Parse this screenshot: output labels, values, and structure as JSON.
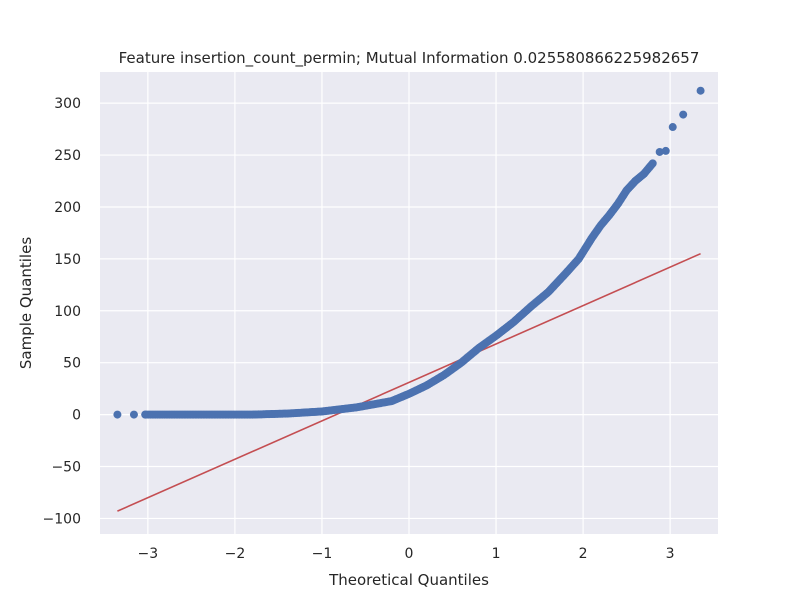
{
  "chart_data": {
    "type": "scatter",
    "title": "Feature insertion_count_permin; Mutual Information 0.025580866225982657",
    "xlabel": "Theoretical Quantiles",
    "ylabel": "Sample Quantiles",
    "xlim": [
      -3.55,
      3.55
    ],
    "ylim": [
      -115,
      330
    ],
    "xticks": [
      -3,
      -2,
      -1,
      0,
      1,
      2,
      3
    ],
    "xtick_labels": [
      "−3",
      "−2",
      "−1",
      "0",
      "1",
      "2",
      "3"
    ],
    "yticks": [
      -100,
      -50,
      0,
      50,
      100,
      150,
      200,
      250,
      300
    ],
    "ytick_labels": [
      "−100",
      "−50",
      "0",
      "50",
      "100",
      "150",
      "200",
      "250",
      "300"
    ],
    "grid": true,
    "colors": {
      "background": "#eaeaf2",
      "grid": "#ffffff",
      "points": "#4c72b0",
      "line": "#c44e52"
    },
    "series": [
      {
        "kind": "points",
        "x": [
          -3.35,
          -3.16,
          -3.03,
          -2.93,
          -2.85,
          -2.75,
          -2.6,
          -2.4,
          -2.2,
          -2.0,
          -1.8,
          -1.6,
          -1.4,
          -1.2,
          -1.0,
          -0.8,
          -0.6,
          -0.4,
          -0.2,
          0.0,
          0.2,
          0.4,
          0.6,
          0.8,
          1.0,
          1.2,
          1.4,
          1.6,
          1.8,
          1.95,
          2.1,
          2.2,
          2.3,
          2.4,
          2.5,
          2.6,
          2.7,
          2.8,
          2.88,
          2.95,
          3.03,
          3.15,
          3.35
        ],
        "y": [
          0,
          0,
          0,
          0,
          0,
          0,
          0,
          0,
          0,
          0,
          0,
          0.5,
          1,
          2,
          3,
          5,
          7,
          10,
          13,
          20,
          28,
          38,
          50,
          64,
          76,
          89,
          104,
          118,
          136,
          150,
          170,
          182,
          192,
          203,
          216,
          225,
          232,
          242,
          253,
          254,
          277,
          289,
          312
        ]
      },
      {
        "kind": "line",
        "x": [
          -3.35,
          3.35
        ],
        "y": [
          -93,
          155
        ]
      }
    ]
  }
}
